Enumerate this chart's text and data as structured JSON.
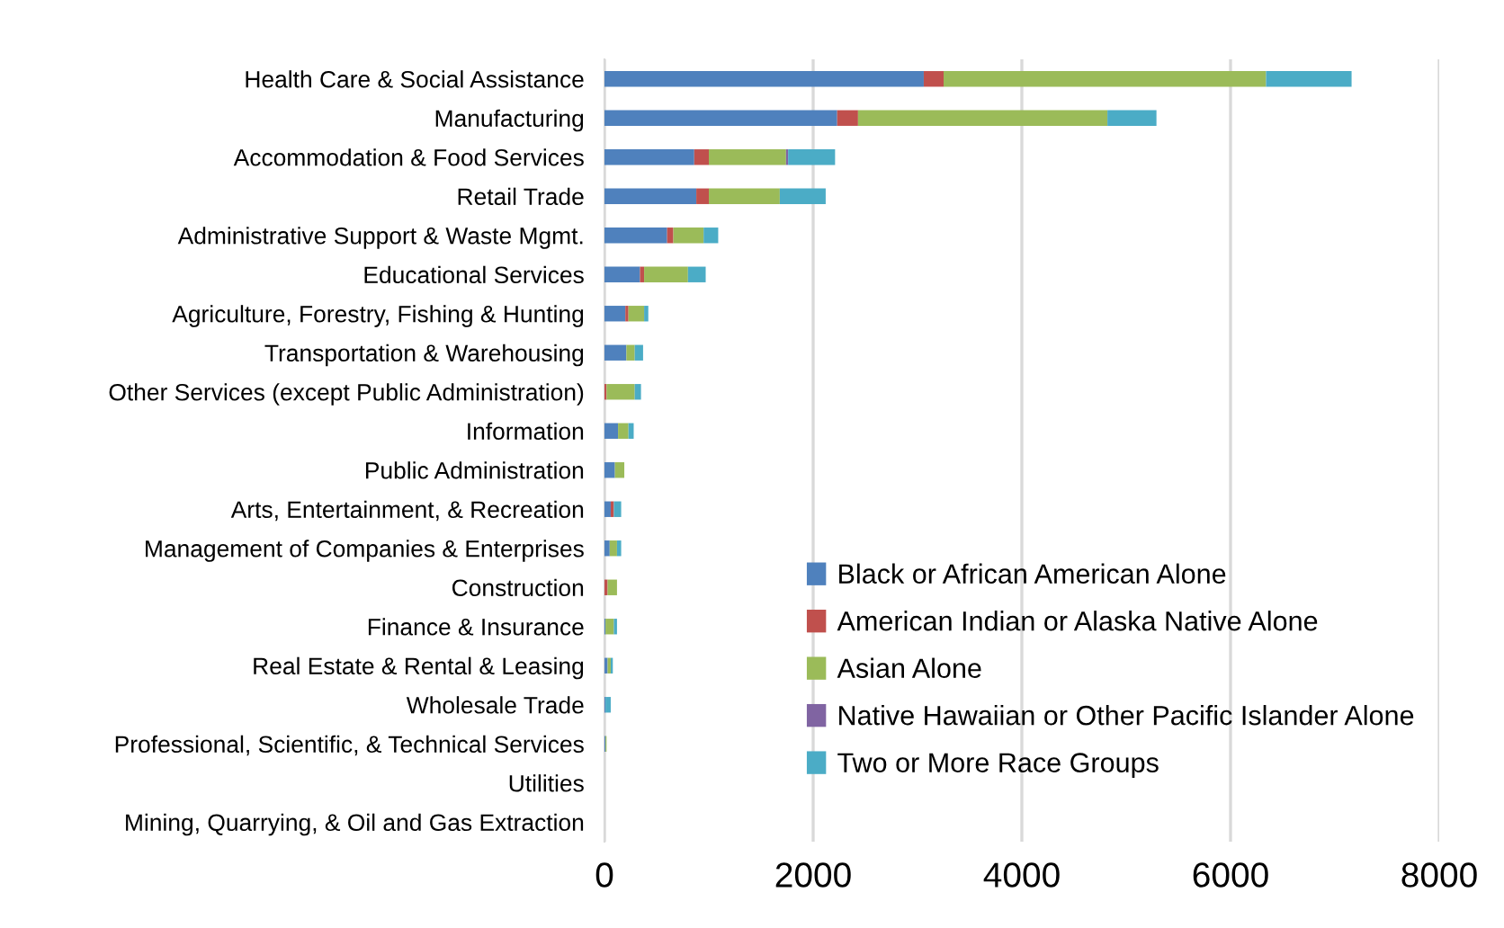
{
  "chart_data": {
    "type": "bar",
    "orientation": "horizontal",
    "stacked": true,
    "categories": [
      "Health Care & Social Assistance",
      "Manufacturing",
      "Accommodation & Food Services",
      "Retail Trade",
      "Administrative Support & Waste Mgmt.",
      "Educational Services",
      "Agriculture, Forestry, Fishing & Hunting",
      "Transportation & Warehousing",
      "Other Services (except Public Administration)",
      "Information",
      "Public Administration",
      "Arts, Entertainment, & Recreation",
      "Management of Companies & Enterprises",
      "Construction",
      "Finance & Insurance",
      "Real Estate & Rental & Leasing",
      "Wholesale Trade",
      "Professional, Scientific, & Technical Services",
      "Utilities",
      "Mining, Quarrying, & Oil and Gas Extraction"
    ],
    "series": [
      {
        "name": "Black or African American Alone",
        "color": "#4f81bd",
        "values": [
          3060,
          2230,
          860,
          880,
          600,
          340,
          200,
          210,
          0,
          130,
          100,
          60,
          50,
          0,
          10,
          30,
          10,
          10,
          0,
          0
        ]
      },
      {
        "name": "American Indian or Alaska Native Alone",
        "color": "#c0504d",
        "values": [
          190,
          200,
          140,
          120,
          60,
          40,
          30,
          0,
          20,
          0,
          0,
          30,
          0,
          30,
          0,
          0,
          0,
          0,
          0,
          0
        ]
      },
      {
        "name": "Asian Alone",
        "color": "#9bbb59",
        "values": [
          3090,
          2390,
          740,
          680,
          290,
          420,
          150,
          80,
          270,
          100,
          90,
          0,
          70,
          90,
          80,
          30,
          0,
          10,
          0,
          0
        ]
      },
      {
        "name": "Native Hawaiian or Other Pacific Islander Alone",
        "color": "#8064a2",
        "values": [
          0,
          0,
          20,
          0,
          0,
          0,
          0,
          0,
          0,
          0,
          0,
          0,
          0,
          0,
          0,
          0,
          0,
          0,
          0,
          0
        ]
      },
      {
        "name": "Two or More Race Groups",
        "color": "#4bacc6",
        "values": [
          820,
          470,
          450,
          440,
          140,
          170,
          40,
          80,
          60,
          50,
          0,
          70,
          40,
          0,
          30,
          20,
          50,
          0,
          0,
          0
        ]
      }
    ],
    "xlim": [
      0,
      8000
    ],
    "xticks": [
      0,
      2000,
      4000,
      6000,
      8000
    ],
    "grid": "x",
    "legend": "bottom right"
  }
}
